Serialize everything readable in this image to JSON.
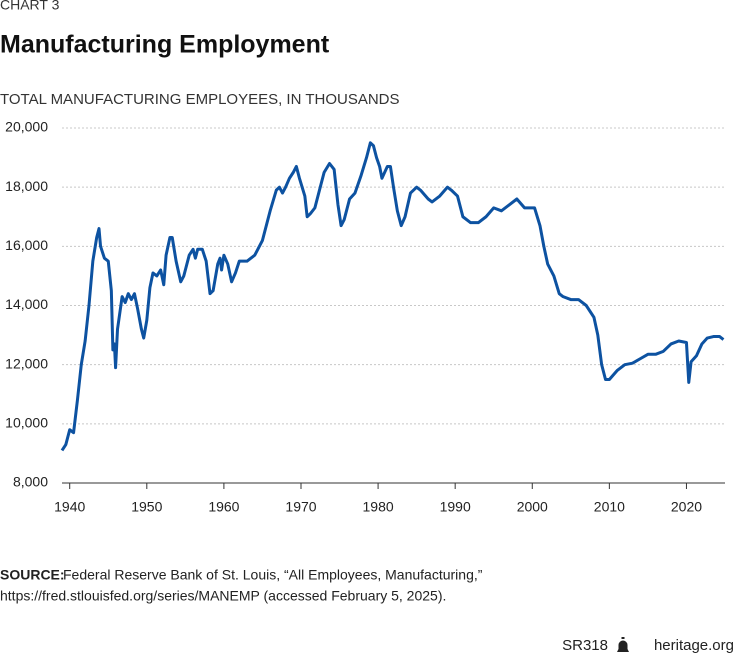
{
  "chart_data": {
    "type": "line",
    "kicker": "CHART 3",
    "title": "Manufacturing Employment",
    "subtitle": "TOTAL MANUFACTURING EMPLOYEES, IN THOUSANDS",
    "x": [
      1939,
      1939.5,
      1940,
      1940.5,
      1941,
      1941.5,
      1942,
      1942.5,
      1943,
      1943.5,
      1943.8,
      1944,
      1944.5,
      1945,
      1945.4,
      1945.6,
      1945.8,
      1945.95,
      1946.2,
      1946.8,
      1947.2,
      1947.6,
      1948,
      1948.4,
      1948.8,
      1949.3,
      1949.6,
      1950,
      1950.4,
      1950.8,
      1951.3,
      1951.8,
      1952.2,
      1952.5,
      1953,
      1953.3,
      1953.8,
      1954.4,
      1954.8,
      1955.5,
      1956,
      1956.3,
      1956.6,
      1957.2,
      1957.7,
      1958.2,
      1958.6,
      1959.2,
      1959.5,
      1959.7,
      1960,
      1960.5,
      1961,
      1961.5,
      1962,
      1963,
      1964,
      1965,
      1966,
      1966.8,
      1967.2,
      1967.6,
      1968,
      1968.5,
      1969,
      1969.4,
      1969.8,
      1970.5,
      1970.8,
      1971.2,
      1971.8,
      1972.5,
      1973,
      1973.7,
      1974.3,
      1974.8,
      1975.2,
      1975.6,
      1976.3,
      1977,
      1977.8,
      1978.5,
      1979,
      1979.4,
      1979.8,
      1980.2,
      1980.5,
      1981.2,
      1981.6,
      1982,
      1982.5,
      1983,
      1983.5,
      1984.2,
      1985,
      1985.5,
      1986.5,
      1987,
      1988,
      1989,
      1989.5,
      1990.3,
      1991,
      1992,
      1992.5,
      1993,
      1994,
      1995,
      1996,
      1997,
      1998,
      1999,
      2000.3,
      2001,
      2001.5,
      2002,
      2002.8,
      2003.5,
      2004,
      2005,
      2006,
      2007,
      2008,
      2008.5,
      2009,
      2009.5,
      2010,
      2011,
      2012,
      2013,
      2014,
      2015,
      2016,
      2017,
      2018,
      2019,
      2020,
      2020.3,
      2020.6,
      2021.3,
      2022,
      2022.7,
      2023.5,
      2024.3,
      2024.8
    ],
    "series": [
      {
        "color": "#0d52a1",
        "values": [
          9100,
          9300,
          9800,
          9700,
          10800,
          12000,
          12800,
          14000,
          15500,
          16300,
          16600,
          16000,
          15600,
          15500,
          14500,
          12500,
          12700,
          11900,
          13200,
          14300,
          14100,
          14400,
          14200,
          14400,
          13900,
          13200,
          12900,
          13500,
          14600,
          15100,
          15000,
          15200,
          14700,
          15700,
          16300,
          16300,
          15500,
          14800,
          15000,
          15700,
          15900,
          15600,
          15900,
          15900,
          15500,
          14400,
          14500,
          15400,
          15600,
          15200,
          15700,
          15400,
          14800,
          15100,
          15500,
          15500,
          15700,
          16200,
          17200,
          17900,
          18000,
          17800,
          18000,
          18300,
          18500,
          18700,
          18300,
          17700,
          17000,
          17100,
          17300,
          18000,
          18500,
          18800,
          18600,
          17400,
          16700,
          16900,
          17600,
          17800,
          18400,
          19000,
          19500,
          19400,
          19000,
          18700,
          18300,
          18700,
          18700,
          18000,
          17200,
          16700,
          17000,
          17800,
          18000,
          17900,
          17600,
          17500,
          17700,
          18000,
          17900,
          17700,
          17000,
          16800,
          16800,
          16800,
          17000,
          17300,
          17200,
          17400,
          17600,
          17300,
          17300,
          16700,
          16000,
          15400,
          15000,
          14400,
          14300,
          14200,
          14200,
          14000,
          13600,
          13000,
          12000,
          11500,
          11500,
          11800,
          12000,
          12050,
          12200,
          12350,
          12350,
          12450,
          12700,
          12800,
          12750,
          11400,
          12100,
          12300,
          12700,
          12900,
          12950,
          12950,
          12850
        ]
      }
    ],
    "xlim": [
      1939,
      2025
    ],
    "xticks": [
      1940,
      1950,
      1960,
      1970,
      1980,
      1990,
      2000,
      2010,
      2020
    ],
    "ylim": [
      8000,
      20000
    ],
    "yticks": [
      {
        "value": 8000,
        "label": "8,000"
      },
      {
        "value": 10000,
        "label": "10,000"
      },
      {
        "value": 12000,
        "label": "12,000"
      },
      {
        "value": 14000,
        "label": "14,000"
      },
      {
        "value": 16000,
        "label": "16,000"
      },
      {
        "value": 18000,
        "label": "18,000"
      },
      {
        "value": 20000,
        "label": "20,000"
      }
    ],
    "grid": true,
    "source_label": "SOURCE:",
    "source_lines": [
      "Federal Reserve Bank of St. Louis, “All Employees, Manufacturing,”",
      "https://fred.stlouisfed.org/series/MANEMP (accessed February 5, 2025)."
    ],
    "report_id": "SR318",
    "site": "heritage.org"
  }
}
